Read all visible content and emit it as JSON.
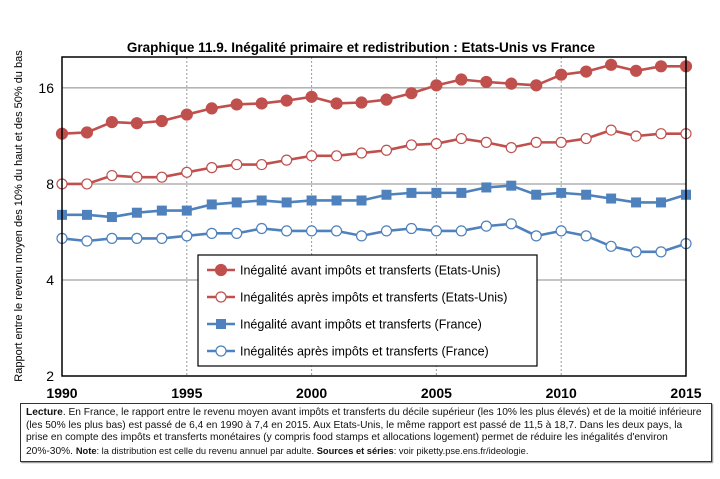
{
  "chart_data": {
    "type": "line",
    "title": "Graphique 11.9. Inégalité primaire et redistribution : Etats-Unis vs France",
    "xlabel": "",
    "ylabel": "Rapport entre le revenu moyen des 10% du haut et des 50% du bas",
    "y_scale": "log2",
    "ylim": [
      2,
      20
    ],
    "xlim": [
      1990,
      2015
    ],
    "y_ticks": [
      2,
      4,
      8,
      16
    ],
    "x_ticks": [
      1990,
      1995,
      2000,
      2005,
      2010,
      2015
    ],
    "grid": "on",
    "legend_placement": "center-bottom",
    "x": [
      1990,
      1991,
      1992,
      1993,
      1994,
      1995,
      1996,
      1997,
      1998,
      1999,
      2000,
      2001,
      2002,
      2003,
      2004,
      2005,
      2006,
      2007,
      2008,
      2009,
      2010,
      2011,
      2012,
      2013,
      2014,
      2015
    ],
    "series": [
      {
        "name": "Inégalité avant impôts et transferts (Etats-Unis)",
        "color": "#c0504d",
        "marker": "filled-circle",
        "values": [
          11.5,
          11.6,
          12.5,
          12.4,
          12.6,
          13.2,
          13.8,
          14.2,
          14.3,
          14.6,
          15.0,
          14.3,
          14.4,
          14.7,
          15.4,
          16.3,
          17.0,
          16.7,
          16.5,
          16.3,
          17.6,
          18.0,
          18.9,
          18.1,
          18.7,
          18.7
        ]
      },
      {
        "name": "Inégalités après impôts et transferts (Etats-Unis)",
        "color": "#c0504d",
        "marker": "open-circle",
        "values": [
          8.0,
          8.0,
          8.5,
          8.4,
          8.4,
          8.7,
          9.0,
          9.2,
          9.2,
          9.5,
          9.8,
          9.8,
          10.0,
          10.2,
          10.6,
          10.7,
          11.1,
          10.8,
          10.4,
          10.8,
          10.8,
          11.1,
          11.8,
          11.3,
          11.5,
          11.5
        ]
      },
      {
        "name": "Inégalité avant impôts et transferts (France)",
        "color": "#4f81bd",
        "marker": "filled-square",
        "values": [
          6.4,
          6.4,
          6.3,
          6.5,
          6.6,
          6.6,
          6.9,
          7.0,
          7.1,
          7.0,
          7.1,
          7.1,
          7.1,
          7.4,
          7.5,
          7.5,
          7.5,
          7.8,
          7.9,
          7.4,
          7.5,
          7.4,
          7.2,
          7.0,
          7.0,
          7.4
        ]
      },
      {
        "name": "Inégalités après impôts et transferts (France)",
        "color": "#4f81bd",
        "marker": "open-circle",
        "values": [
          5.4,
          5.3,
          5.4,
          5.4,
          5.4,
          5.5,
          5.6,
          5.6,
          5.8,
          5.7,
          5.7,
          5.7,
          5.5,
          5.7,
          5.8,
          5.7,
          5.7,
          5.9,
          6.0,
          5.5,
          5.7,
          5.5,
          5.1,
          4.9,
          4.9,
          5.2
        ]
      }
    ]
  },
  "note": {
    "lecture_label": "Lecture",
    "lecture_text": ". En France, le rapport entre le revenu moyen avant impôts et transferts du décile supérieur (les 10% les plus élevés) et de la moitié inférieure (les 50% les plus bas) est passé de 6,4 en 1990 à 7,4 en 2015. Aux Etats-Unis, le même rapport est passé de 11,5 à 18,7. Dans les deux pays, la prise en compte des impôts et transferts monétaires (y compris food stamps et allocations logement) permet de réduire les inégalités d'environ 20%-30%. ",
    "note_label": "Note",
    "note_text": ": la distribution est celle du revenu annuel par adulte. ",
    "sources_label": "Sources et séries",
    "sources_text": ": voir piketty.pse.ens.fr/ideologie."
  }
}
